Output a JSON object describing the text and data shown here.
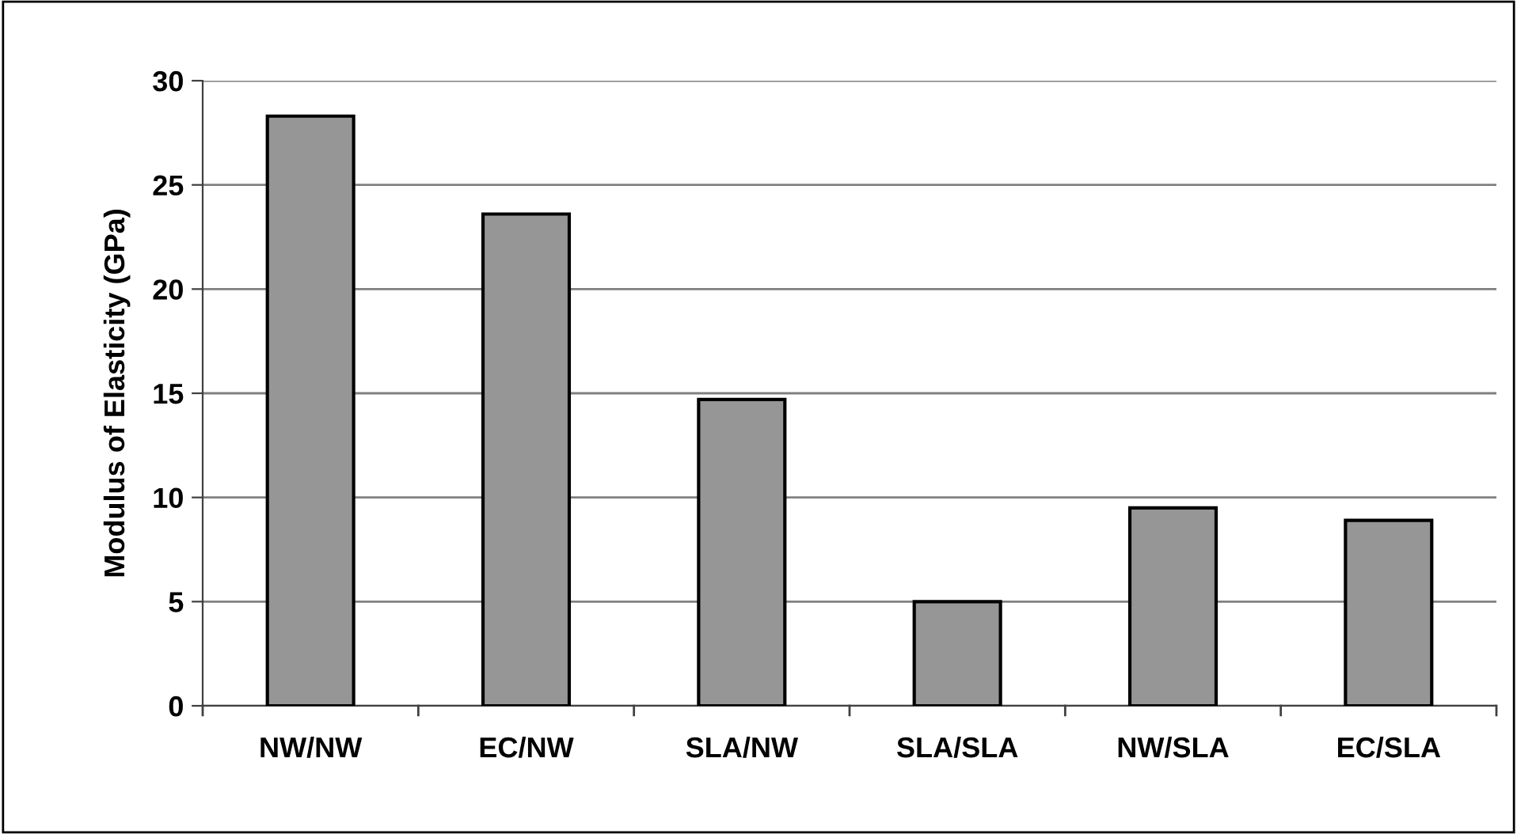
{
  "chart_data": {
    "type": "bar",
    "ylabel": "Modulus of Elasticity (GPa)",
    "categories": [
      "NW/NW",
      "EC/NW",
      "SLA/NW",
      "SLA/SLA",
      "NW/SLA",
      "EC/SLA"
    ],
    "values": [
      28.3,
      23.6,
      14.7,
      5.0,
      9.5,
      8.9
    ],
    "color": "#969696",
    "ylim": [
      0,
      30
    ],
    "yticks": [
      0,
      5,
      10,
      15,
      20,
      25,
      30
    ],
    "grid": "y",
    "legend": false
  }
}
